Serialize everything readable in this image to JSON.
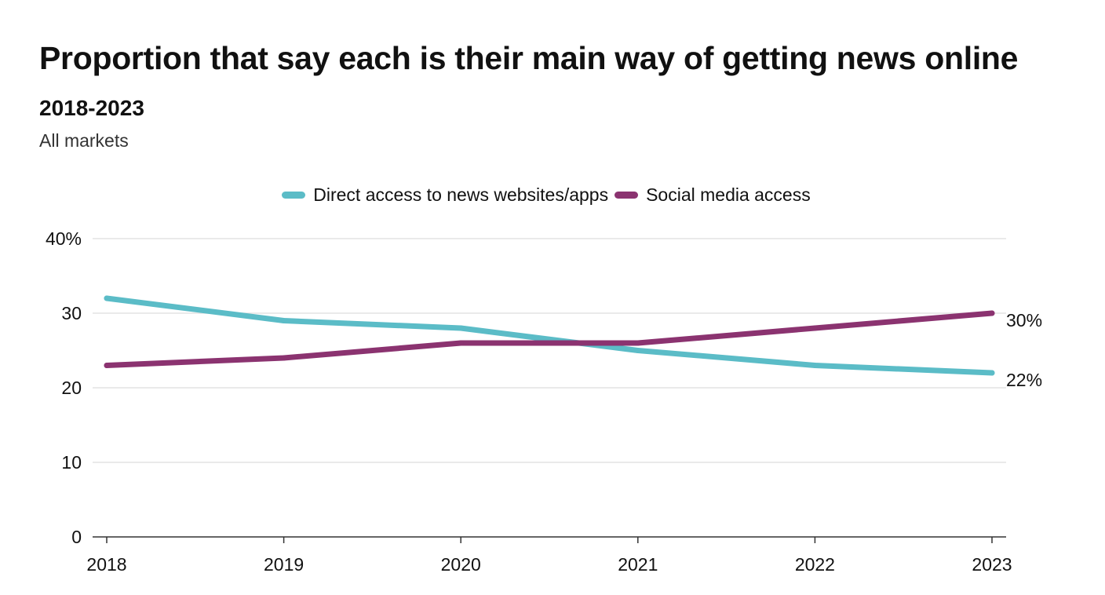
{
  "chart_data": {
    "type": "line",
    "title": "Proportion that say each is their main way of getting news online",
    "subtitle": "2018-2023",
    "note": "All markets",
    "x": [
      "2018",
      "2019",
      "2020",
      "2021",
      "2022",
      "2023"
    ],
    "series": [
      {
        "name": "Direct access to news websites/apps",
        "color": "#5bbcc7",
        "values": [
          32,
          29,
          28,
          25,
          23,
          22
        ],
        "end_label": "22%"
      },
      {
        "name": "Social media access",
        "color": "#8b3370",
        "values": [
          23,
          24,
          26,
          26,
          28,
          30
        ],
        "end_label": "30%"
      }
    ],
    "ylim": [
      0,
      40
    ],
    "y_ticks": [
      0,
      10,
      20,
      30,
      40
    ],
    "y_tick_labels": [
      "0",
      "10",
      "20",
      "30",
      "40%"
    ],
    "xlabel": "",
    "ylabel": "",
    "grid": true,
    "legend_position": "top-center"
  }
}
